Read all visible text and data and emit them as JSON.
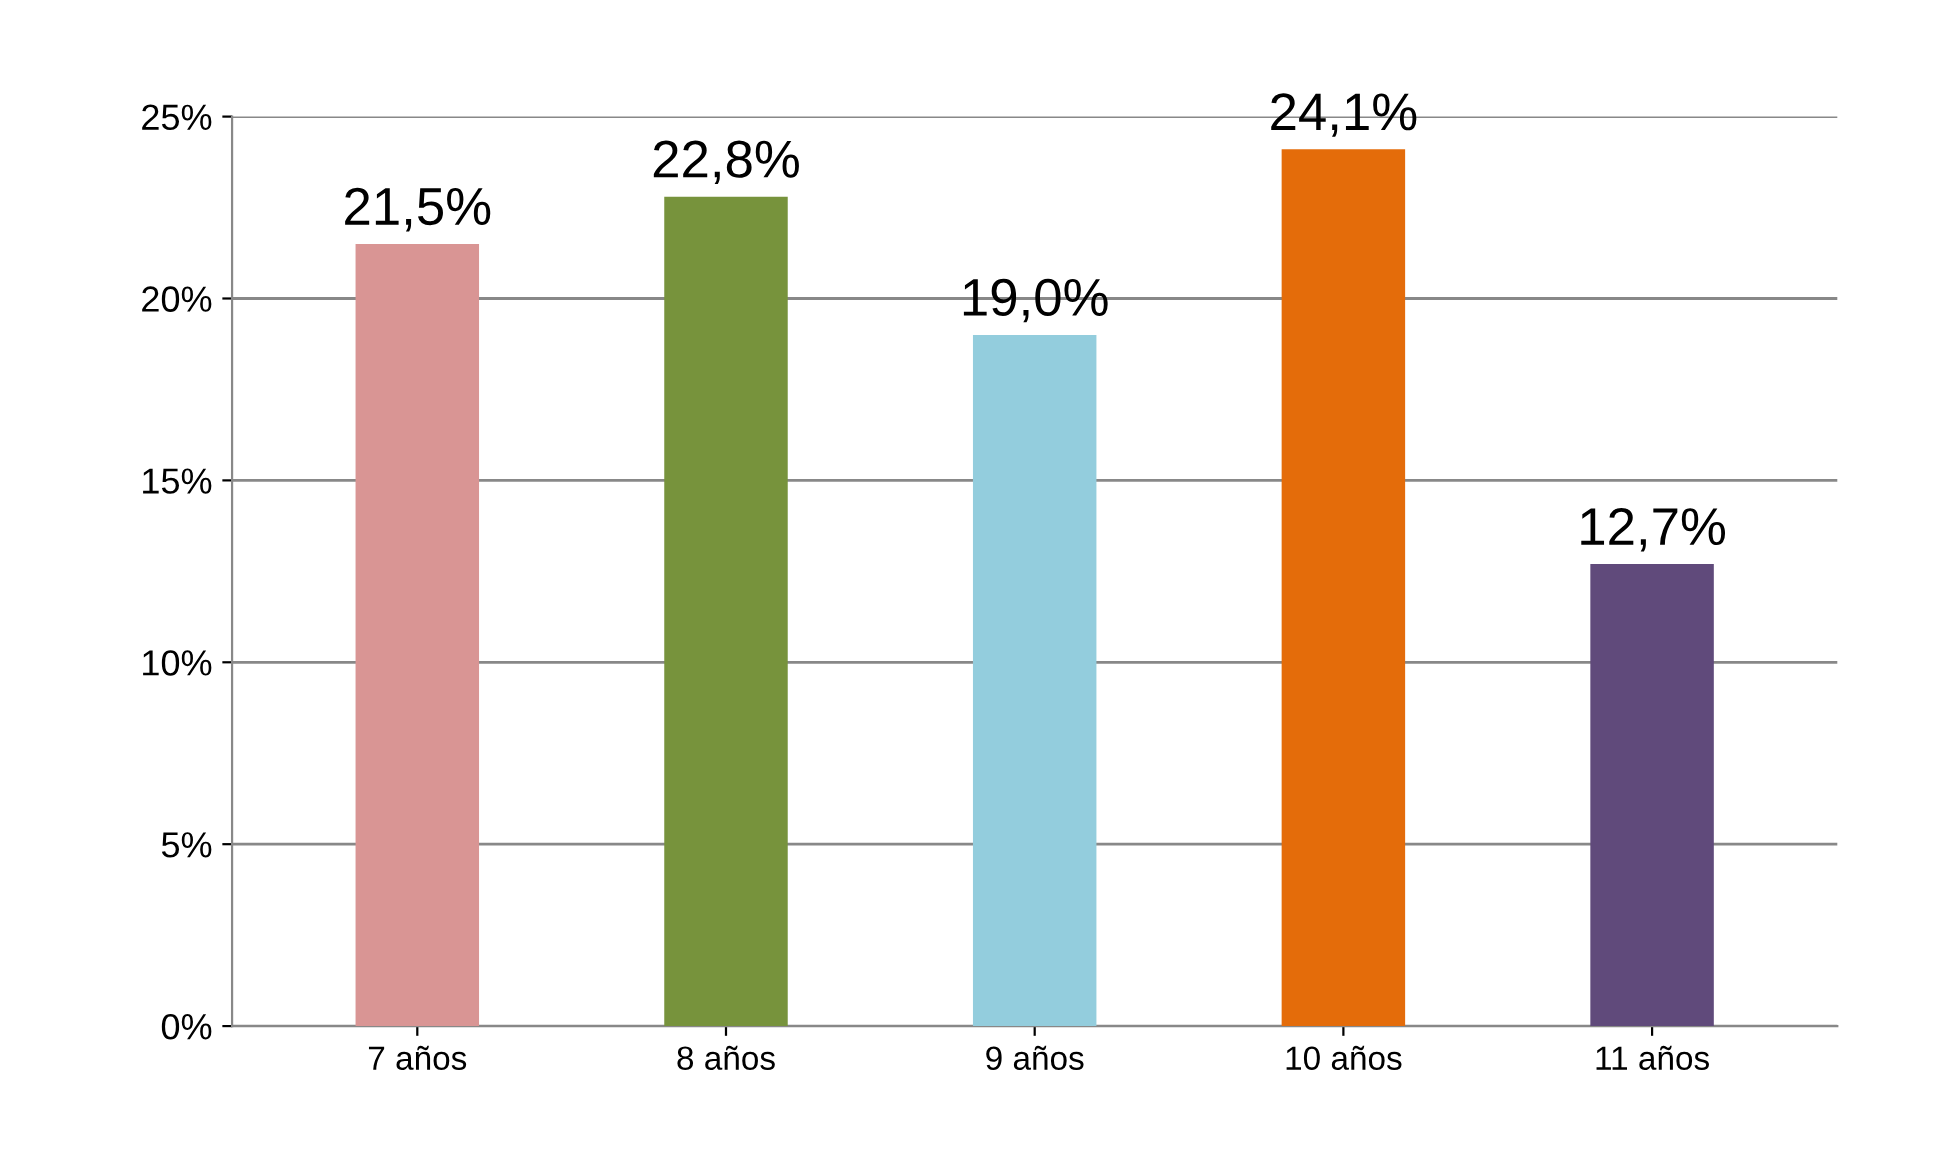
{
  "chart_data": {
    "type": "bar",
    "categories": [
      "7 años",
      "8 años",
      "9 años",
      "10 años",
      "11 años"
    ],
    "values": [
      21.5,
      22.8,
      19.0,
      24.1,
      12.7
    ],
    "colors": [
      "#d99594",
      "#77933c",
      "#93cddd",
      "#e46c0a",
      "#604a7b"
    ],
    "value_labels": [
      "21,5%",
      "22,8%",
      "19,0%",
      "24,1%",
      "12,7%"
    ],
    "ylim": [
      0,
      25
    ],
    "yticks": [
      {
        "value": 0,
        "label": "0%"
      },
      {
        "value": 5,
        "label": "5%"
      },
      {
        "value": 10,
        "label": "10%"
      },
      {
        "value": 15,
        "label": "15%"
      },
      {
        "value": 20,
        "label": "20%"
      },
      {
        "value": 25,
        "label": "25%"
      }
    ],
    "grid": "y"
  }
}
